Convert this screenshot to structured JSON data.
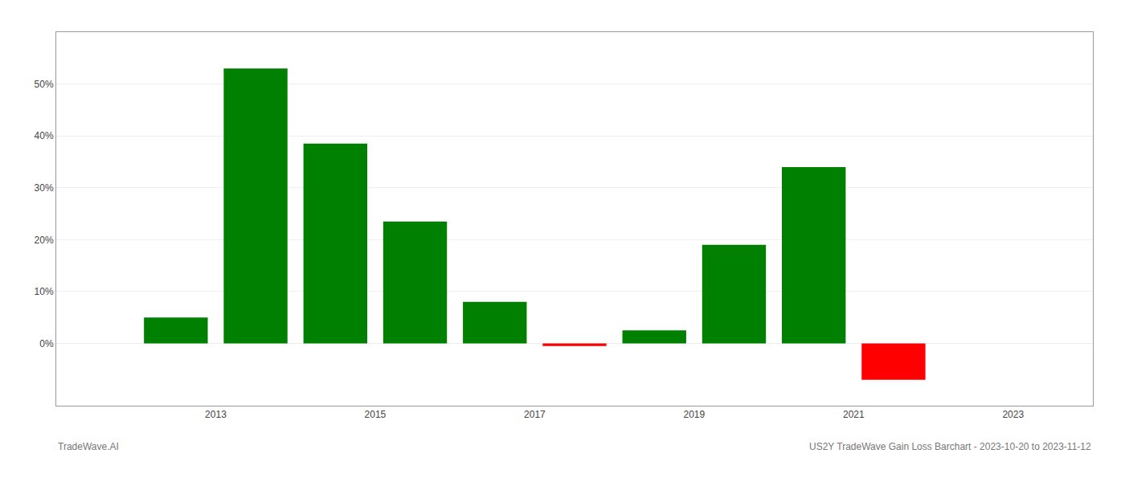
{
  "chart_data": {
    "type": "bar",
    "x": [
      2013,
      2014,
      2015,
      2016,
      2017,
      2018,
      2019,
      2020,
      2021,
      2022
    ],
    "values": [
      0.05,
      0.53,
      0.385,
      0.235,
      0.08,
      -0.005,
      0.025,
      0.19,
      0.34,
      -0.07
    ],
    "colors": [
      "#008000",
      "#008000",
      "#008000",
      "#008000",
      "#008000",
      "#ff0000",
      "#008000",
      "#008000",
      "#008000",
      "#ff0000"
    ],
    "xlim": [
      2011.5,
      2024.5
    ],
    "xticks": [
      {
        "value": 2013.5,
        "label": "2013"
      },
      {
        "value": 2015.5,
        "label": "2015"
      },
      {
        "value": 2017.5,
        "label": "2017"
      },
      {
        "value": 2019.5,
        "label": "2019"
      },
      {
        "value": 2021.5,
        "label": "2021"
      },
      {
        "value": 2023.5,
        "label": "2023"
      }
    ],
    "ylim": [
      -0.12,
      0.6
    ],
    "yticks": [
      {
        "value": 0.0,
        "label": "0%"
      },
      {
        "value": 0.1,
        "label": "10%"
      },
      {
        "value": 0.2,
        "label": "20%"
      },
      {
        "value": 0.3,
        "label": "30%"
      },
      {
        "value": 0.4,
        "label": "40%"
      },
      {
        "value": 0.5,
        "label": "50%"
      }
    ],
    "grid": true,
    "annotations": [
      "TradeWave.AI",
      "US2Y TradeWave Gain Loss Barchart - 2023-10-20 to 2023-11-12"
    ]
  }
}
